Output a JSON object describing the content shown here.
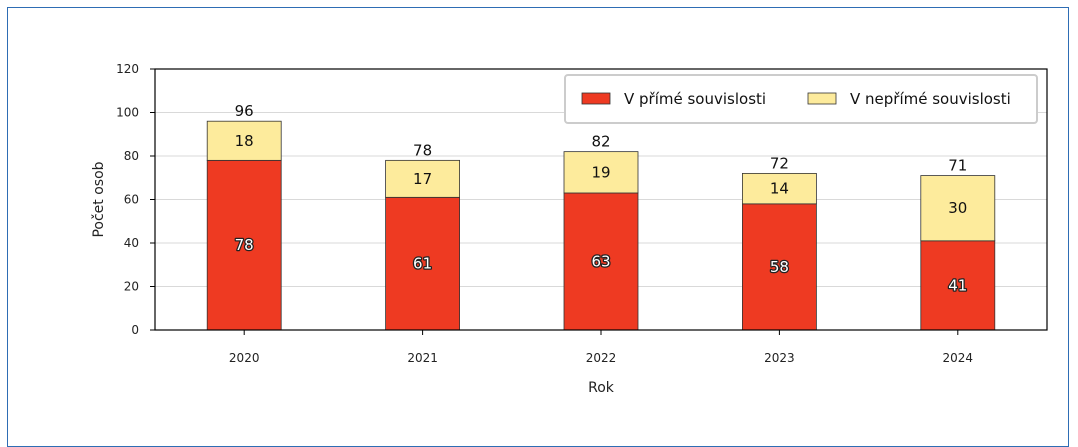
{
  "chart_data": {
    "type": "bar",
    "stacked": true,
    "title": "",
    "xlabel": "Rok",
    "ylabel": "Počet osob",
    "categories": [
      "2020",
      "2021",
      "2022",
      "2023",
      "2024"
    ],
    "series": [
      {
        "name": "V přímé souvislosti",
        "values": [
          78,
          61,
          63,
          58,
          41
        ],
        "color": "#ee3a22"
      },
      {
        "name": "V nepřímé souvislosti",
        "values": [
          18,
          17,
          19,
          14,
          30
        ],
        "color": "#fdeb9c"
      }
    ],
    "totals": [
      96,
      78,
      82,
      72,
      71
    ],
    "ylim": [
      0,
      120
    ],
    "yticks": [
      0,
      20,
      40,
      60,
      80,
      100,
      120
    ],
    "grid": true,
    "legend_position": "top-right",
    "frame_color": "#2e6db4"
  }
}
